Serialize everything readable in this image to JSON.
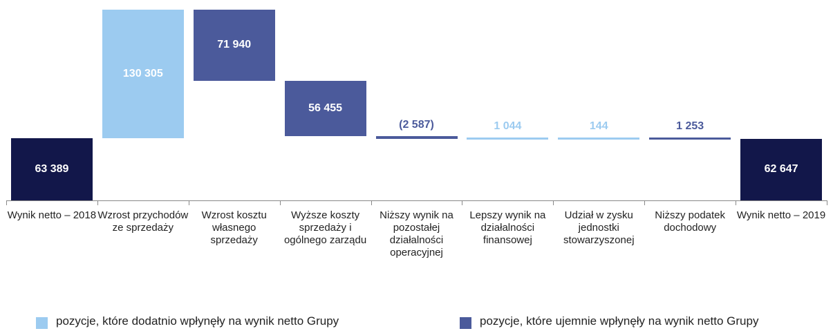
{
  "chart_data": {
    "type": "waterfall",
    "categories": [
      "Wynik netto – 2018",
      "Wzrost przychodów ze sprzedaży",
      "Wzrost kosztu własnego sprzedaży",
      "Wyższe koszty sprzedaży i ogólnego zarządu",
      "Niższy wynik na pozostałej działalności operacyjnej",
      "Lepszy wynik na działalności finansowej",
      "Udział w zysku jednostki stowarzyszonej",
      "Niższy podatek dochodowy",
      "Wynik netto – 2019"
    ],
    "values": [
      63389,
      130305,
      -71940,
      -56455,
      -2587,
      1044,
      144,
      -1253,
      62647
    ],
    "value_labels": [
      "63 389",
      "130 305",
      "71 940",
      "56 455",
      "(2 587)",
      "1 044",
      "144",
      "1 253",
      "62 647"
    ],
    "total_indices": [
      0,
      8
    ],
    "total_color": "#12174a",
    "legend": [
      {
        "name": "pozycje, które dodatnio wpłynęły na wynik netto Grupy",
        "color": "#9ccbf0"
      },
      {
        "name": "pozycje, które ujemnie wpłynęły na wynik netto Grupy",
        "color": "#4b5a9b"
      }
    ]
  }
}
